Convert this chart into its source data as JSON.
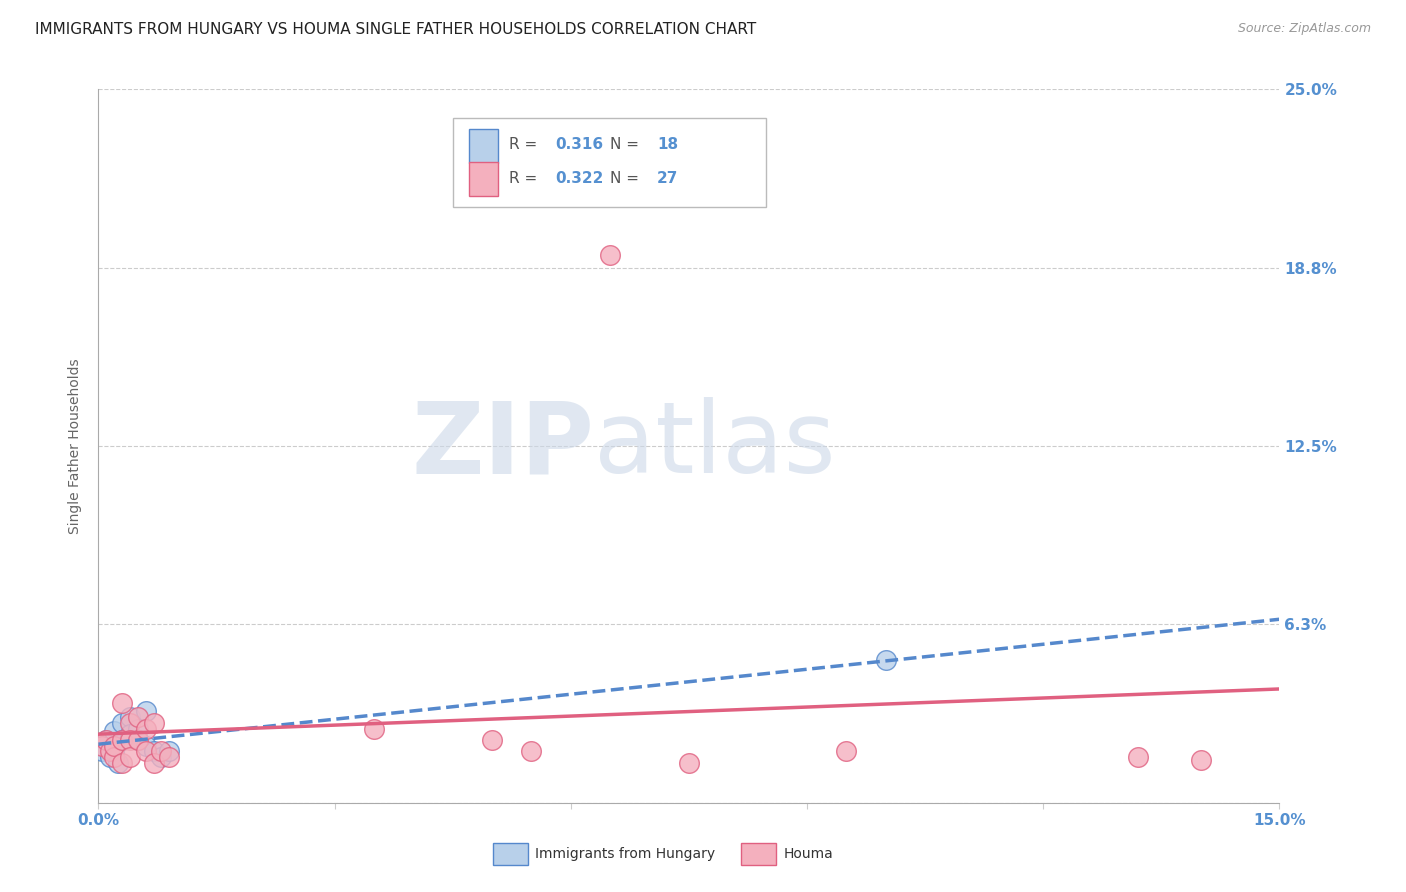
{
  "title": "IMMIGRANTS FROM HUNGARY VS HOUMA SINGLE FATHER HOUSEHOLDS CORRELATION CHART",
  "source_text": "Source: ZipAtlas.com",
  "ylabel": "Single Father Households",
  "xlim": [
    0.0,
    0.15
  ],
  "ylim": [
    0.0,
    0.25
  ],
  "xticks": [
    0.0,
    0.03,
    0.06,
    0.09,
    0.12,
    0.15
  ],
  "yticks": [
    0.0,
    0.0625,
    0.125,
    0.1875,
    0.25
  ],
  "ytick_labels": [
    "",
    "6.3%",
    "12.5%",
    "18.8%",
    "25.0%"
  ],
  "xtick_labels": [
    "0.0%",
    "",
    "",
    "",
    "",
    "15.0%"
  ],
  "blue_fill": "#b8d0ea",
  "blue_edge": "#5588cc",
  "pink_fill": "#f4b0be",
  "pink_edge": "#e06080",
  "blue_line_color": "#5588cc",
  "pink_line_color": "#e06080",
  "blue_scatter": [
    [
      0.0005,
      0.018
    ],
    [
      0.001,
      0.022
    ],
    [
      0.0015,
      0.016
    ],
    [
      0.002,
      0.025
    ],
    [
      0.002,
      0.018
    ],
    [
      0.0025,
      0.014
    ],
    [
      0.003,
      0.028
    ],
    [
      0.003,
      0.022
    ],
    [
      0.004,
      0.03
    ],
    [
      0.004,
      0.024
    ],
    [
      0.005,
      0.026
    ],
    [
      0.005,
      0.022
    ],
    [
      0.006,
      0.032
    ],
    [
      0.006,
      0.02
    ],
    [
      0.007,
      0.018
    ],
    [
      0.008,
      0.016
    ],
    [
      0.009,
      0.018
    ],
    [
      0.1,
      0.05
    ]
  ],
  "pink_scatter": [
    [
      0.0005,
      0.02
    ],
    [
      0.001,
      0.022
    ],
    [
      0.0015,
      0.018
    ],
    [
      0.002,
      0.016
    ],
    [
      0.002,
      0.02
    ],
    [
      0.003,
      0.035
    ],
    [
      0.003,
      0.022
    ],
    [
      0.003,
      0.014
    ],
    [
      0.004,
      0.028
    ],
    [
      0.004,
      0.022
    ],
    [
      0.004,
      0.016
    ],
    [
      0.005,
      0.03
    ],
    [
      0.005,
      0.022
    ],
    [
      0.006,
      0.026
    ],
    [
      0.006,
      0.018
    ],
    [
      0.007,
      0.028
    ],
    [
      0.007,
      0.014
    ],
    [
      0.008,
      0.018
    ],
    [
      0.009,
      0.016
    ],
    [
      0.035,
      0.026
    ],
    [
      0.05,
      0.022
    ],
    [
      0.055,
      0.018
    ],
    [
      0.065,
      0.192
    ],
    [
      0.075,
      0.014
    ],
    [
      0.095,
      0.018
    ],
    [
      0.132,
      0.016
    ],
    [
      0.14,
      0.015
    ]
  ],
  "legend_blue_R": "0.316",
  "legend_blue_N": "18",
  "legend_pink_R": "0.322",
  "legend_pink_N": "27",
  "watermark_zip": "ZIP",
  "watermark_atlas": "atlas",
  "tick_color": "#5590d0",
  "tick_fontsize": 11,
  "title_fontsize": 11,
  "source_fontsize": 9,
  "ylabel_fontsize": 10,
  "legend_fontsize": 11,
  "grid_color": "#cccccc",
  "grid_linestyle": "--",
  "grid_linewidth": 0.8
}
